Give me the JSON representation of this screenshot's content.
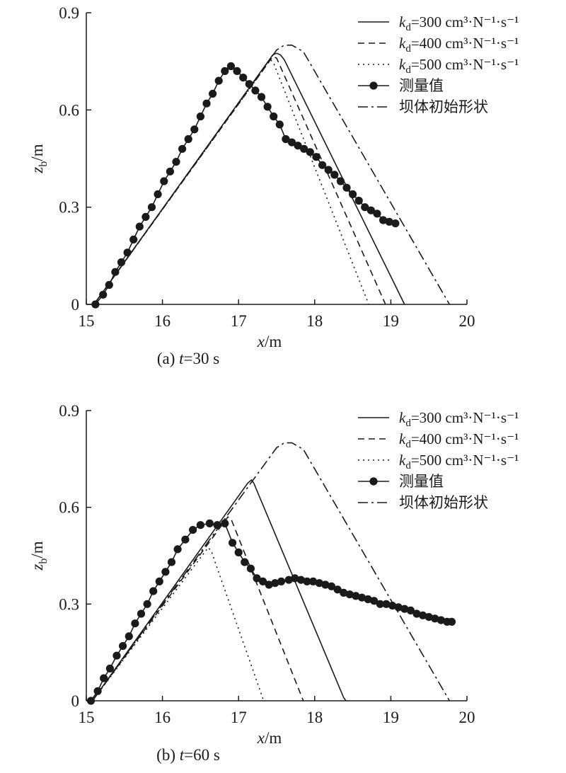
{
  "chart_data": [
    {
      "type": "line",
      "caption_prefix": "(a) ",
      "caption_var": "t",
      "caption_rest": "=30 s",
      "xlabel": "x/m",
      "ylabel": "zb/m",
      "xlim": [
        15,
        20
      ],
      "ylim": [
        0,
        0.9
      ],
      "xticks": [
        "15",
        "16",
        "17",
        "18",
        "19",
        "20"
      ],
      "yticks": [
        "0",
        "0.3",
        "0.6",
        "0.9"
      ],
      "legend_position": "top-right",
      "legend": [
        {
          "label": "kd=300 cm³·N⁻¹·s⁻¹",
          "style": "solid"
        },
        {
          "label": "kd=400 cm³·N⁻¹·s⁻¹",
          "style": "dashed"
        },
        {
          "label": "kd=500 cm³·N⁻¹·s⁻¹",
          "style": "dotted"
        },
        {
          "label": "测量值",
          "style": "marker-line"
        },
        {
          "label": "坝体初始形状",
          "style": "dashdot"
        }
      ],
      "series": [
        {
          "key": "kd300",
          "style": "solid",
          "x": [
            15.1,
            17.45,
            17.5,
            17.55,
            17.6,
            19.18
          ],
          "y": [
            0,
            0.77,
            0.775,
            0.77,
            0.755,
            0
          ]
        },
        {
          "key": "kd400",
          "style": "dashed",
          "x": [
            15.1,
            17.45,
            17.5,
            18.93
          ],
          "y": [
            0,
            0.765,
            0.76,
            0
          ]
        },
        {
          "key": "kd500",
          "style": "dotted",
          "x": [
            15.1,
            17.42,
            17.46,
            18.71
          ],
          "y": [
            0,
            0.755,
            0.745,
            0
          ]
        },
        {
          "key": "initial",
          "style": "dashdot",
          "x": [
            15.1,
            17.5,
            17.6,
            17.7,
            17.85,
            19.77
          ],
          "y": [
            0,
            0.785,
            0.8,
            0.8,
            0.78,
            0
          ]
        },
        {
          "key": "measured",
          "style": "marker-line",
          "x": [
            15.12,
            15.22,
            15.3,
            15.38,
            15.46,
            15.54,
            15.62,
            15.7,
            15.78,
            15.86,
            15.94,
            16.02,
            16.1,
            16.18,
            16.26,
            16.34,
            16.42,
            16.5,
            16.58,
            16.66,
            16.74,
            16.82,
            16.9,
            16.98,
            17.06,
            17.14,
            17.22,
            17.3,
            17.38,
            17.46,
            17.54,
            17.62,
            17.7,
            17.78,
            17.86,
            17.94,
            18.02,
            18.1,
            18.18,
            18.26,
            18.34,
            18.42,
            18.5,
            18.58,
            18.66,
            18.74,
            18.82,
            18.9,
            18.98,
            19.06
          ],
          "y": [
            0,
            0.03,
            0.06,
            0.1,
            0.13,
            0.16,
            0.2,
            0.24,
            0.27,
            0.3,
            0.34,
            0.38,
            0.41,
            0.44,
            0.48,
            0.51,
            0.54,
            0.58,
            0.62,
            0.65,
            0.69,
            0.72,
            0.735,
            0.72,
            0.7,
            0.68,
            0.66,
            0.64,
            0.61,
            0.58,
            0.555,
            0.51,
            0.5,
            0.49,
            0.48,
            0.47,
            0.455,
            0.43,
            0.415,
            0.4,
            0.38,
            0.36,
            0.34,
            0.32,
            0.3,
            0.29,
            0.28,
            0.26,
            0.255,
            0.25
          ]
        }
      ]
    },
    {
      "type": "line",
      "caption_prefix": "(b) ",
      "caption_var": "t",
      "caption_rest": "=60 s",
      "xlabel": "x/m",
      "ylabel": "zb/m",
      "xlim": [
        15,
        20
      ],
      "ylim": [
        0,
        0.9
      ],
      "xticks": [
        "15",
        "16",
        "17",
        "18",
        "19",
        "20"
      ],
      "yticks": [
        "0",
        "0.3",
        "0.6",
        "0.9"
      ],
      "legend_position": "top-right",
      "legend": [
        {
          "label": "kd=300 cm³·N⁻¹·s⁻¹",
          "style": "solid"
        },
        {
          "label": "kd=400 cm³·N⁻¹·s⁻¹",
          "style": "dashed"
        },
        {
          "label": "kd=500 cm³·N⁻¹·s⁻¹",
          "style": "dotted"
        },
        {
          "label": "测量值",
          "style": "marker-line"
        },
        {
          "label": "坝体初始形状",
          "style": "dashdot"
        }
      ],
      "series": [
        {
          "key": "kd300",
          "style": "solid",
          "x": [
            15.08,
            17.12,
            17.17,
            17.2,
            18.38,
            18.41
          ],
          "y": [
            0,
            0.675,
            0.685,
            0.675,
            0.01,
            0
          ]
        },
        {
          "key": "kd400",
          "style": "dashed",
          "x": [
            15.08,
            16.86,
            16.9,
            17.85
          ],
          "y": [
            0,
            0.57,
            0.565,
            0
          ]
        },
        {
          "key": "kd500",
          "style": "dotted",
          "x": [
            15.08,
            16.6,
            16.64,
            17.33
          ],
          "y": [
            0,
            0.475,
            0.465,
            0
          ]
        },
        {
          "key": "initial",
          "style": "dashdot",
          "x": [
            15.08,
            17.5,
            17.6,
            17.7,
            17.85,
            19.77
          ],
          "y": [
            0,
            0.785,
            0.8,
            0.8,
            0.78,
            0
          ]
        },
        {
          "key": "measured",
          "style": "marker-line",
          "x": [
            15.06,
            15.15,
            15.23,
            15.31,
            15.4,
            15.48,
            15.56,
            15.64,
            15.72,
            15.8,
            15.88,
            15.96,
            16.04,
            16.12,
            16.2,
            16.3,
            16.4,
            16.5,
            16.62,
            16.72,
            16.82,
            16.92,
            17.0,
            17.08,
            17.16,
            17.24,
            17.32,
            17.4,
            17.48,
            17.56,
            17.66,
            17.74,
            17.82,
            17.9,
            17.98,
            18.06,
            18.14,
            18.22,
            18.3,
            18.38,
            18.46,
            18.54,
            18.62,
            18.7,
            18.78,
            18.86,
            18.94,
            19.02,
            19.1,
            19.18,
            19.26,
            19.34,
            19.42,
            19.5,
            19.58,
            19.66,
            19.74,
            19.8
          ],
          "y": [
            0,
            0.03,
            0.07,
            0.1,
            0.14,
            0.17,
            0.2,
            0.24,
            0.27,
            0.3,
            0.34,
            0.37,
            0.4,
            0.43,
            0.47,
            0.5,
            0.53,
            0.545,
            0.55,
            0.545,
            0.55,
            0.49,
            0.46,
            0.43,
            0.41,
            0.38,
            0.37,
            0.36,
            0.365,
            0.37,
            0.375,
            0.38,
            0.375,
            0.37,
            0.37,
            0.365,
            0.36,
            0.355,
            0.345,
            0.335,
            0.33,
            0.325,
            0.32,
            0.315,
            0.31,
            0.3,
            0.3,
            0.295,
            0.29,
            0.285,
            0.28,
            0.27,
            0.265,
            0.26,
            0.255,
            0.25,
            0.245,
            0.245
          ]
        }
      ]
    }
  ]
}
